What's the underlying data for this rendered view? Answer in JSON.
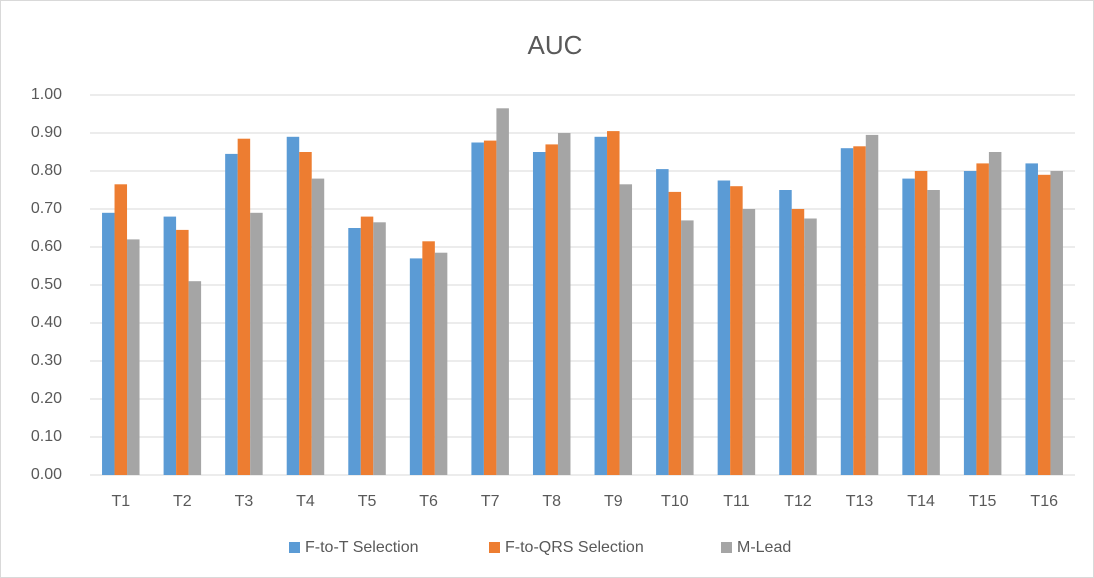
{
  "chart_data": {
    "type": "bar",
    "title": "AUC",
    "categories": [
      "T1",
      "T2",
      "T3",
      "T4",
      "T5",
      "T6",
      "T7",
      "T8",
      "T9",
      "T10",
      "T11",
      "T12",
      "T13",
      "T14",
      "T15",
      "T16"
    ],
    "series": [
      {
        "name": "F-to-T Selection",
        "color": "#5b9bd5",
        "values": [
          0.69,
          0.68,
          0.845,
          0.89,
          0.65,
          0.57,
          0.875,
          0.85,
          0.89,
          0.805,
          0.775,
          0.75,
          0.86,
          0.78,
          0.8,
          0.82
        ]
      },
      {
        "name": "F-to-QRS Selection",
        "color": "#ed7d31",
        "values": [
          0.765,
          0.645,
          0.885,
          0.85,
          0.68,
          0.615,
          0.88,
          0.87,
          0.905,
          0.745,
          0.76,
          0.7,
          0.865,
          0.8,
          0.82,
          0.79
        ]
      },
      {
        "name": "M-Lead",
        "color": "#a5a5a5",
        "values": [
          0.62,
          0.51,
          0.69,
          0.78,
          0.665,
          0.585,
          0.965,
          0.9,
          0.765,
          0.67,
          0.7,
          0.675,
          0.895,
          0.75,
          0.85,
          0.8
        ]
      }
    ],
    "ylim": [
      0,
      1
    ],
    "yticks": [
      {
        "value": 0,
        "label": "0.00"
      },
      {
        "value": 0.1,
        "label": "0.10"
      },
      {
        "value": 0.2,
        "label": "0.20"
      },
      {
        "value": 0.3,
        "label": "0.30"
      },
      {
        "value": 0.4,
        "label": "0.40"
      },
      {
        "value": 0.5,
        "label": "0.50"
      },
      {
        "value": 0.6,
        "label": "0.60"
      },
      {
        "value": 0.7,
        "label": "0.70"
      },
      {
        "value": 0.8,
        "label": "0.80"
      },
      {
        "value": 0.9,
        "label": "0.90"
      },
      {
        "value": 1,
        "label": "1.00"
      }
    ],
    "grid": true,
    "legend": "bottom"
  }
}
